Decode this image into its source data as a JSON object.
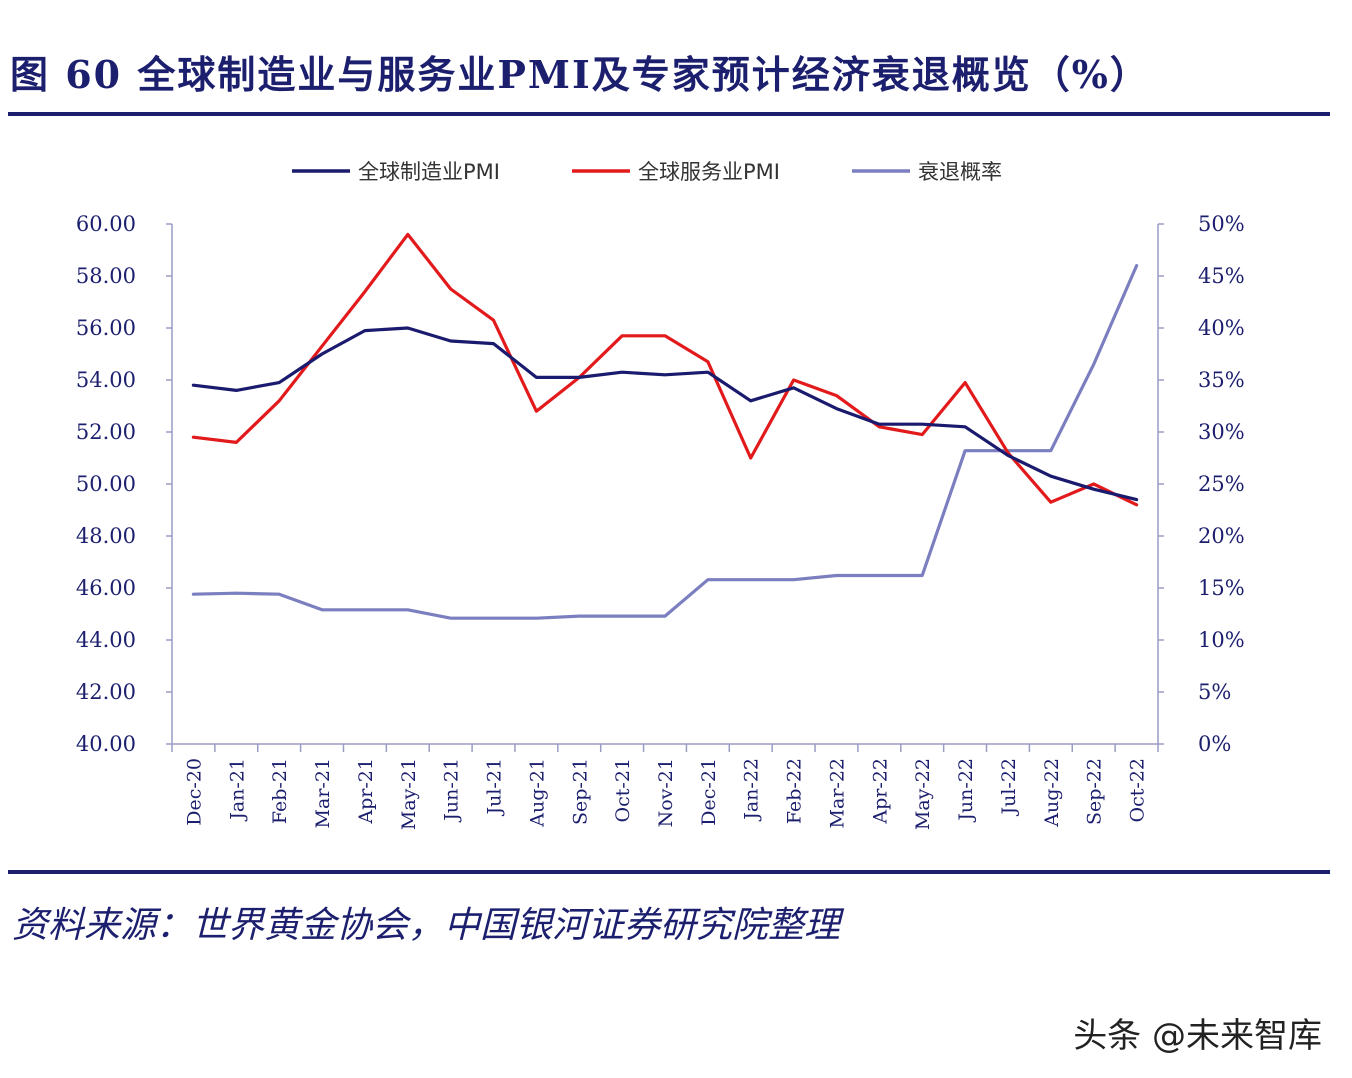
{
  "title": "图 60 全球制造业与服务业PMI及专家预计经济衰退概览（%）",
  "source": "资料来源：世界黄金协会，中国银河证券研究院整理",
  "watermark": "头条 @未来智库",
  "colors": {
    "title": "#1c1f6e",
    "manufacturing": "#1a1a6e",
    "services": "#e31a1c",
    "recession": "#7b7fbf",
    "axis": "#1c1f6e"
  },
  "chart_data": {
    "type": "line",
    "title": "",
    "categories": [
      "Dec-20",
      "Jan-21",
      "Feb-21",
      "Mar-21",
      "Apr-21",
      "May-21",
      "Jun-21",
      "Jul-21",
      "Aug-21",
      "Sep-21",
      "Oct-21",
      "Nov-21",
      "Dec-21",
      "Jan-22",
      "Feb-22",
      "Mar-22",
      "Apr-22",
      "May-22",
      "Jun-22",
      "Jul-22",
      "Aug-22",
      "Sep-22",
      "Oct-22"
    ],
    "y_left": {
      "ylim": [
        40,
        60
      ],
      "ticks": [
        "40.00",
        "42.00",
        "44.00",
        "46.00",
        "48.00",
        "50.00",
        "52.00",
        "54.00",
        "56.00",
        "58.00",
        "60.00"
      ]
    },
    "y_right": {
      "ylim": [
        0,
        50
      ],
      "ticks": [
        "0%",
        "5%",
        "10%",
        "15%",
        "20%",
        "25%",
        "30%",
        "35%",
        "40%",
        "45%",
        "50%"
      ]
    },
    "legend_position": "top",
    "series": [
      {
        "name": "全球制造业PMI",
        "axis": "left",
        "color": "#1a1a6e",
        "values": [
          53.8,
          53.6,
          53.9,
          55.0,
          55.9,
          56.0,
          55.5,
          55.4,
          54.1,
          54.1,
          54.3,
          54.2,
          54.3,
          53.2,
          53.7,
          52.9,
          52.3,
          52.3,
          52.2,
          51.1,
          50.3,
          49.8,
          49.4
        ]
      },
      {
        "name": "全球服务业PMI",
        "axis": "left",
        "color": "#e31a1c",
        "values": [
          51.8,
          51.6,
          53.2,
          55.3,
          57.4,
          59.6,
          57.5,
          56.3,
          52.8,
          54.1,
          55.7,
          55.7,
          54.7,
          51.0,
          54.0,
          53.4,
          52.2,
          51.9,
          53.9,
          51.2,
          49.3,
          50.0,
          49.2
        ]
      },
      {
        "name": "衰退概率",
        "axis": "right",
        "color": "#7b7fbf",
        "values": [
          14.4,
          14.5,
          14.4,
          12.9,
          12.9,
          12.9,
          12.1,
          12.1,
          12.1,
          12.3,
          12.3,
          12.3,
          15.8,
          15.8,
          15.8,
          16.2,
          16.2,
          16.2,
          28.2,
          28.2,
          28.2,
          36.5,
          46.0
        ]
      }
    ]
  }
}
